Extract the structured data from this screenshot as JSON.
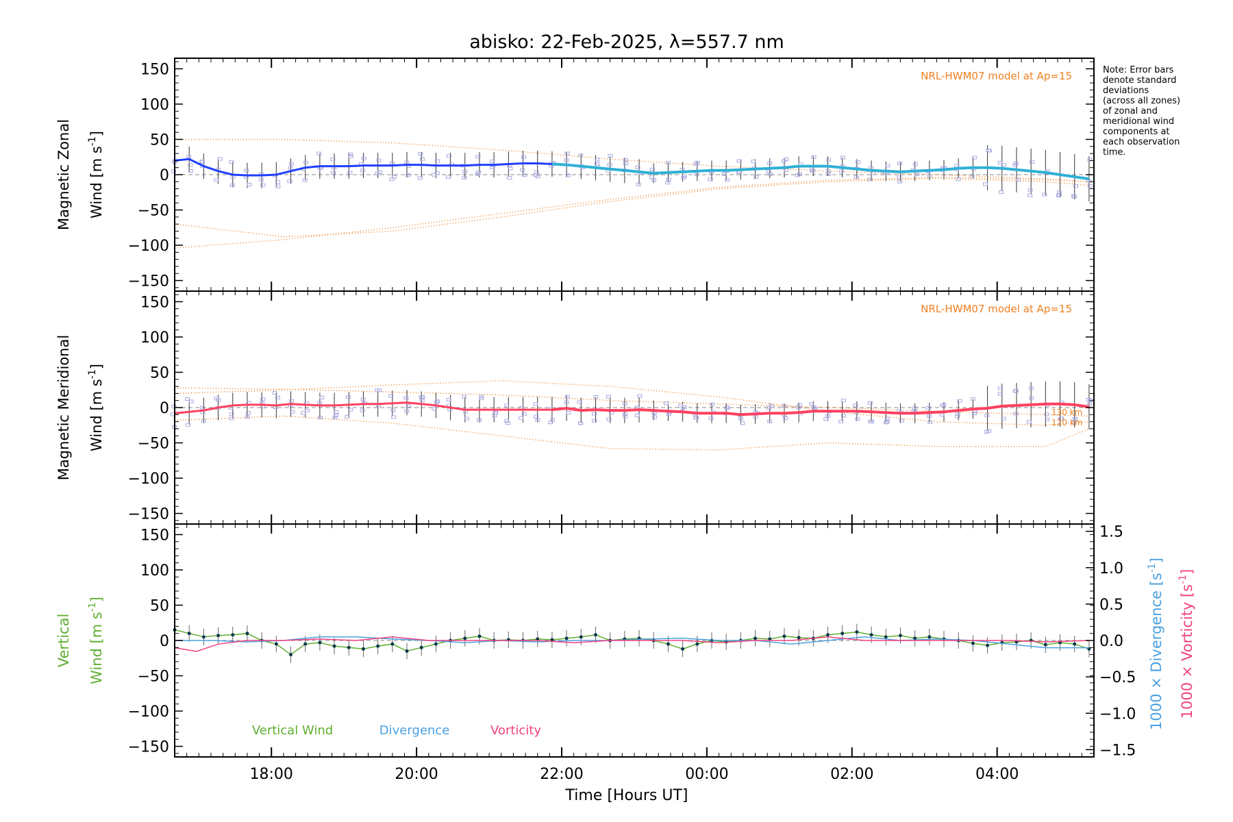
{
  "chart_data": {
    "title": "abisko: 22-Feb-2025, λ=557.7 nm",
    "type": "line",
    "xlabel": "Time [Hours UT]",
    "x_unit": "hours since 16:40 UT",
    "x_ticks": [
      "18:00",
      "20:00",
      "22:00",
      "00:00",
      "02:00",
      "04:00"
    ],
    "xlim": [
      "16:40",
      "05:20"
    ],
    "note_lines": [
      "Note: Error bars",
      "denote standard",
      "deviations",
      "(across all zones)",
      "of zonal and",
      "meridional wind",
      "components at",
      "each observation",
      "time."
    ],
    "colors": {
      "zonal": "#1f3fff",
      "zonal_late": "#2fb0d6",
      "meridional": "#ff4060",
      "model": "#f08020",
      "vertical": "#5fae2f",
      "divergence": "#4aa0e0",
      "vorticity": "#f04080",
      "zones": "#a8a8e0"
    },
    "panels": [
      {
        "name": "zonal",
        "ylabel_line1": "Magnetic Zonal",
        "ylabel_line2": "Wind [m s",
        "ylabel_exp": "-1",
        "ylabel_close": "]",
        "ylim": [
          -165,
          165
        ],
        "yticks": [
          "150",
          "100",
          "50",
          "0",
          "−50",
          "−100",
          "−150"
        ],
        "ytick_values": [
          150,
          100,
          50,
          0,
          -50,
          -100,
          -150
        ],
        "model_label": "NRL-HWM07 model at Ap=15",
        "series": [
          {
            "role": "wind",
            "x": [
              0.0,
              0.2,
              0.4,
              0.6,
              0.8,
              1.0,
              1.2,
              1.4,
              1.6,
              1.8,
              2.0,
              2.2,
              2.4,
              2.6,
              2.8,
              3.0,
              3.2,
              3.4,
              3.6,
              3.8,
              4.0,
              4.2,
              4.4,
              4.6,
              4.8,
              5.0,
              5.2,
              5.4,
              5.6,
              5.8,
              6.0,
              6.2,
              6.4,
              6.6,
              6.8,
              7.0,
              7.2,
              7.4,
              7.6,
              7.8,
              8.0,
              8.2,
              8.4,
              8.6,
              8.8,
              9.0,
              9.2,
              9.4,
              9.6,
              9.8,
              10.0,
              10.2,
              10.4,
              10.6,
              10.8,
              11.0,
              11.2,
              11.4,
              11.6,
              11.8,
              12.0,
              12.2,
              12.4,
              12.6
            ],
            "y": [
              20,
              22,
              12,
              5,
              0,
              -1,
              -1,
              0,
              5,
              10,
              12,
              12,
              12,
              13,
              13,
              13,
              14,
              14,
              13,
              13,
              13,
              14,
              14,
              15,
              16,
              16,
              15,
              14,
              12,
              10,
              8,
              6,
              4,
              2,
              3,
              4,
              5,
              6,
              6,
              7,
              8,
              9,
              10,
              12,
              12,
              12,
              10,
              8,
              6,
              5,
              4,
              5,
              6,
              7,
              9,
              10,
              10,
              9,
              7,
              5,
              3,
              0,
              -3,
              -6
            ]
          },
          {
            "role": "model-1",
            "x": [
              0,
              1.5,
              3,
              4.5,
              6,
              7.5,
              9,
              10.5,
              12,
              12.6
            ],
            "y": [
              -70,
              -88,
              -80,
              -60,
              -38,
              -20,
              -10,
              -5,
              -10,
              -15
            ]
          },
          {
            "role": "model-2",
            "x": [
              0,
              1.5,
              3,
              4.5,
              6,
              7.5,
              9,
              10.5,
              12,
              12.6
            ],
            "y": [
              -104,
              -92,
              -75,
              -55,
              -35,
              -18,
              -8,
              -4,
              -7,
              -10
            ]
          },
          {
            "role": "model-3",
            "x": [
              0,
              1.5,
              3,
              4.5,
              6,
              7.5,
              9,
              10.5,
              12,
              12.6
            ],
            "y": [
              50,
              50,
              45,
              35,
              22,
              12,
              5,
              0,
              -6,
              -10
            ]
          }
        ]
      },
      {
        "name": "meridional",
        "ylabel_line1": "Magnetic Meridional",
        "ylabel_line2": "Wind [m s",
        "ylabel_exp": "-1",
        "ylabel_close": "]",
        "ylim": [
          -165,
          165
        ],
        "yticks": [
          "150",
          "100",
          "50",
          "0",
          "−50",
          "−100",
          "−150"
        ],
        "ytick_values": [
          150,
          100,
          50,
          0,
          -50,
          -100,
          -150
        ],
        "model_label": "NRL-HWM07 model at Ap=15",
        "model_alt_labels": [
          "130 km",
          "120 km"
        ],
        "series": [
          {
            "role": "wind",
            "x": [
              0.0,
              0.2,
              0.4,
              0.6,
              0.8,
              1.0,
              1.2,
              1.4,
              1.6,
              1.8,
              2.0,
              2.2,
              2.4,
              2.6,
              2.8,
              3.0,
              3.2,
              3.4,
              3.6,
              3.8,
              4.0,
              4.2,
              4.4,
              4.6,
              4.8,
              5.0,
              5.2,
              5.4,
              5.6,
              5.8,
              6.0,
              6.2,
              6.4,
              6.6,
              6.8,
              7.0,
              7.2,
              7.4,
              7.6,
              7.8,
              8.0,
              8.2,
              8.4,
              8.6,
              8.8,
              9.0,
              9.2,
              9.4,
              9.6,
              9.8,
              10.0,
              10.2,
              10.4,
              10.6,
              10.8,
              11.0,
              11.2,
              11.4,
              11.6,
              11.8,
              12.0,
              12.2,
              12.4,
              12.6
            ],
            "y": [
              -8,
              -6,
              -4,
              0,
              3,
              4,
              4,
              3,
              5,
              4,
              3,
              3,
              4,
              5,
              5,
              6,
              7,
              5,
              3,
              0,
              -3,
              -3,
              -3,
              -3,
              -3,
              -3,
              -3,
              -1,
              -4,
              -3,
              -4,
              -4,
              -3,
              -4,
              -5,
              -6,
              -8,
              -8,
              -8,
              -10,
              -9,
              -8,
              -8,
              -7,
              -5,
              -5,
              -5,
              -5,
              -6,
              -7,
              -8,
              -8,
              -7,
              -6,
              -4,
              -2,
              -1,
              2,
              3,
              4,
              5,
              5,
              4,
              1
            ]
          },
          {
            "role": "model-1",
            "x": [
              0,
              1.5,
              3,
              4.5,
              6,
              7.5,
              9,
              10.5,
              12,
              12.6
            ],
            "y": [
              28,
              26,
              22,
              18,
              10,
              5,
              0,
              -5,
              -10,
              -12
            ]
          },
          {
            "role": "model-2",
            "x": [
              0,
              1.5,
              3,
              4.5,
              6,
              7.5,
              9,
              10.5,
              12,
              12.6
            ],
            "y": [
              20,
              25,
              32,
              38,
              30,
              15,
              -5,
              -20,
              -25,
              -20
            ]
          },
          {
            "role": "model-3",
            "x": [
              0,
              1.5,
              3,
              4.5,
              6,
              7.5,
              9,
              10.5,
              12,
              12.6
            ],
            "y": [
              -18,
              -12,
              -22,
              -40,
              -58,
              -60,
              -50,
              -55,
              -55,
              -30
            ]
          }
        ]
      },
      {
        "name": "vertical",
        "ylabel_line1": "Vertical",
        "ylabel_line2": "Wind [m s",
        "ylabel_exp": "-1",
        "ylabel_close": "]",
        "ylim": [
          -165,
          165
        ],
        "yticks": [
          "150",
          "100",
          "50",
          "0",
          "−50",
          "−100",
          "−150"
        ],
        "ytick_values": [
          150,
          100,
          50,
          0,
          -50,
          -100,
          -150
        ],
        "y2lim": [
          -1.6,
          1.6
        ],
        "y2ticks": [
          "1.5",
          "1.0",
          "0.5",
          "0.0",
          "−0.5",
          "−1.0",
          "−1.5"
        ],
        "y2tick_values": [
          1.5,
          1.0,
          0.5,
          0.0,
          -0.5,
          -1.0,
          -1.5
        ],
        "y2label_div": "1000 × Divergence [s",
        "y2label_vor": "1000 × Vorticity [s",
        "y2label_exp": "-1",
        "y2label_close": "]",
        "legend": [
          "Vertical Wind",
          "Divergence",
          "Vorticity"
        ],
        "series": [
          {
            "role": "vertical",
            "name": "Vertical Wind",
            "x": [
              0.0,
              0.2,
              0.4,
              0.6,
              0.8,
              1.0,
              1.2,
              1.4,
              1.6,
              1.8,
              2.0,
              2.2,
              2.4,
              2.6,
              2.8,
              3.0,
              3.2,
              3.4,
              3.6,
              3.8,
              4.0,
              4.2,
              4.4,
              4.6,
              4.8,
              5.0,
              5.2,
              5.4,
              5.6,
              5.8,
              6.0,
              6.2,
              6.4,
              6.6,
              6.8,
              7.0,
              7.2,
              7.4,
              7.6,
              7.8,
              8.0,
              8.2,
              8.4,
              8.6,
              8.8,
              9.0,
              9.2,
              9.4,
              9.6,
              9.8,
              10.0,
              10.2,
              10.4,
              10.6,
              10.8,
              11.0,
              11.2,
              11.4,
              11.6,
              11.8,
              12.0,
              12.2,
              12.4,
              12.6
            ],
            "y": [
              15,
              10,
              5,
              7,
              8,
              10,
              0,
              -5,
              -20,
              -5,
              -3,
              -8,
              -10,
              -12,
              -8,
              -5,
              -15,
              -10,
              -5,
              0,
              3,
              6,
              0,
              1,
              0,
              2,
              1,
              3,
              5,
              8,
              0,
              2,
              3,
              0,
              -5,
              -12,
              -5,
              0,
              -2,
              0,
              3,
              2,
              6,
              4,
              3,
              8,
              10,
              12,
              8,
              5,
              7,
              3,
              5,
              2,
              0,
              -4,
              -7,
              -3,
              -2,
              0,
              -6,
              -3,
              -5,
              -12
            ]
          },
          {
            "role": "divergence",
            "name": "Divergence",
            "x": [
              0.0,
              0.5,
              1.0,
              1.5,
              2.0,
              2.5,
              3.0,
              3.5,
              4.0,
              4.5,
              5.0,
              5.5,
              6.0,
              6.5,
              7.0,
              7.5,
              8.0,
              8.5,
              9.0,
              9.5,
              10.0,
              10.5,
              11.0,
              11.5,
              12.0,
              12.6
            ],
            "y": [
              0.0,
              0.0,
              -0.02,
              0.0,
              0.05,
              0.05,
              0.02,
              0.0,
              -0.03,
              0.0,
              -0.02,
              0.0,
              0.0,
              0.02,
              0.03,
              0.0,
              0.0,
              -0.05,
              0.0,
              0.05,
              0.0,
              0.02,
              0.0,
              -0.05,
              -0.1,
              -0.1
            ]
          },
          {
            "role": "vorticity",
            "name": "Vorticity",
            "x": [
              0.0,
              0.3,
              0.6,
              1.0,
              1.5,
              2.0,
              2.5,
              3.0,
              3.5,
              4.0,
              4.5,
              5.0,
              5.5,
              6.0,
              6.5,
              7.0,
              7.5,
              8.0,
              8.5,
              9.0,
              9.5,
              10.0,
              10.5,
              11.0,
              11.5,
              12.0,
              12.6
            ],
            "y": [
              -0.1,
              -0.15,
              -0.05,
              0.0,
              0.0,
              0.02,
              0.0,
              0.05,
              0.0,
              0.0,
              0.0,
              0.0,
              -0.03,
              0.0,
              0.0,
              0.0,
              -0.03,
              0.0,
              0.0,
              0.05,
              0.0,
              0.0,
              0.0,
              0.0,
              0.0,
              -0.02,
              0.0
            ]
          }
        ]
      }
    ]
  }
}
